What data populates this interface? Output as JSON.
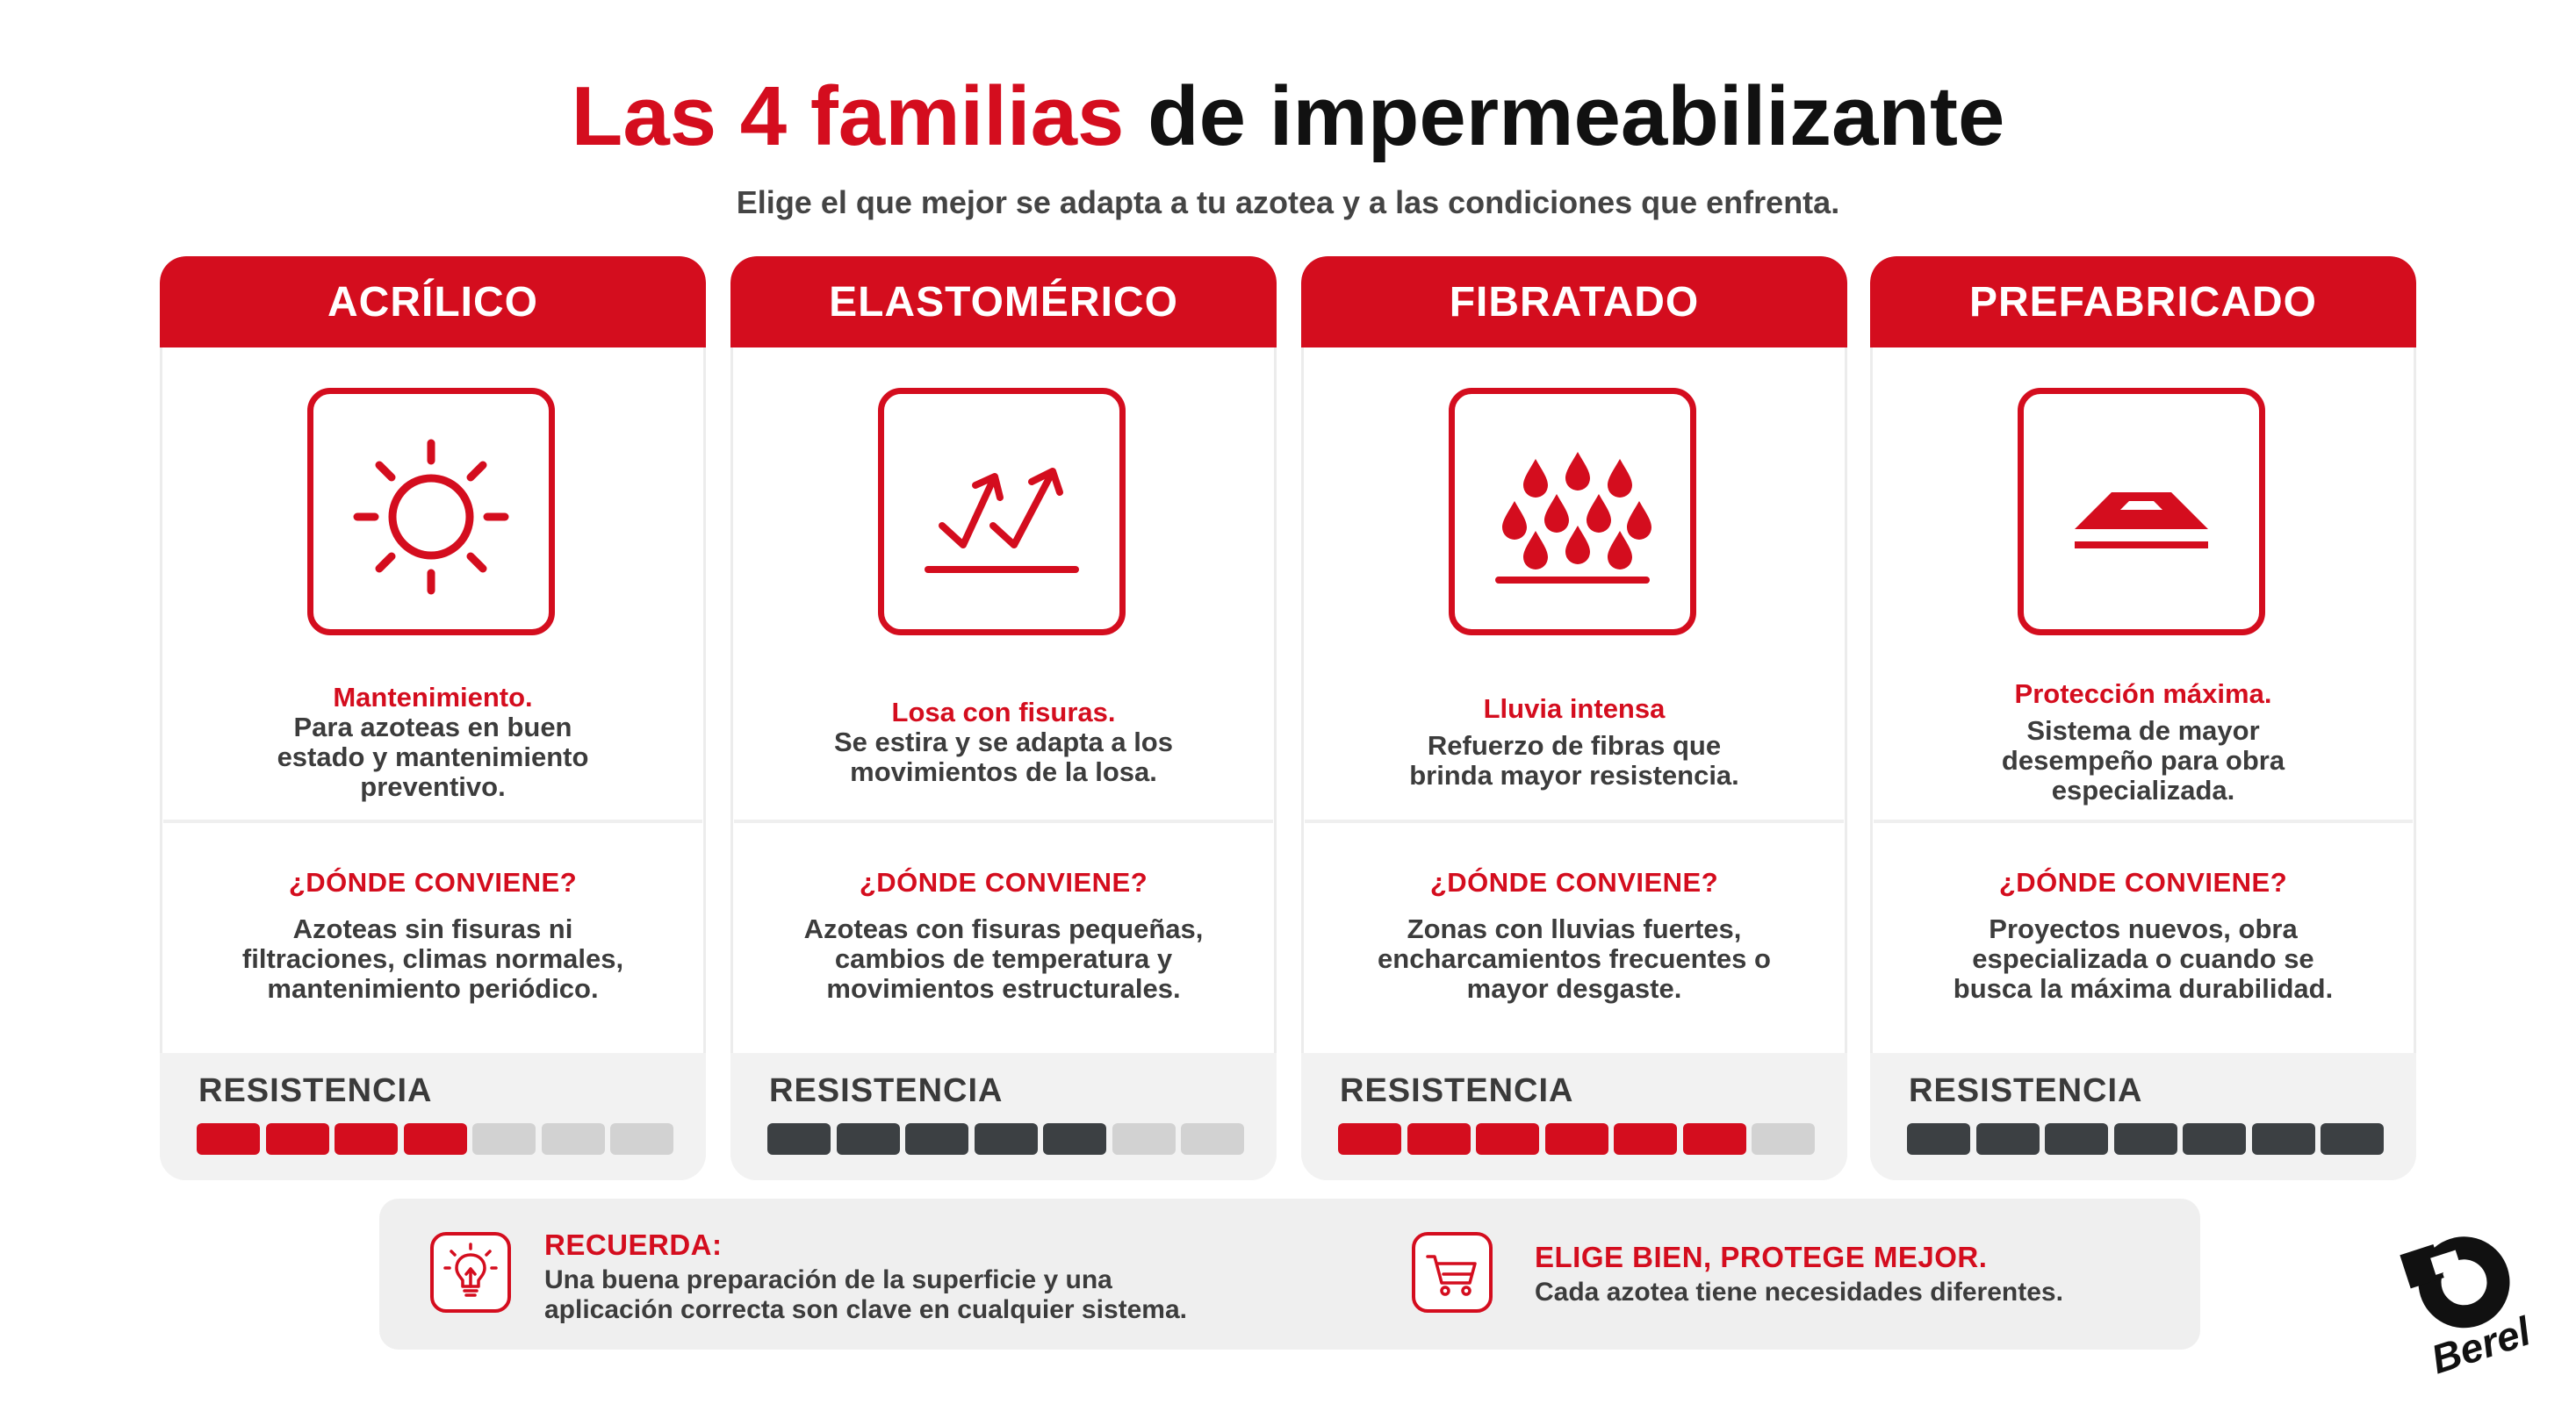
{
  "title": {
    "highlight": "Las 4 familias",
    "rest": " de impermeabilizante"
  },
  "subtitle": "Elige el que mejor se adapta a tu azotea y a las condiciones que enfrenta.",
  "colors": {
    "accent": "#d40d1e",
    "dark": "#3c4043",
    "inactive": "#d2d2d2",
    "panel": "#f2f2f2"
  },
  "cards": [
    {
      "name": "ACRÍLICO",
      "icon": "sun-icon",
      "highlight": "Mantenimiento.",
      "description": [
        "Para azoteas en buen",
        "estado y mantenimiento",
        "preventivo."
      ],
      "where_title": "¿DÓNDE CONVIENE?",
      "where_text": [
        "Azoteas sin fisuras ni",
        "filtraciones, climas normales,",
        "mantenimiento periódico."
      ],
      "resistance_label": "RESISTENCIA",
      "resistance": {
        "level": 4,
        "max": 7,
        "color": "#d40d1e"
      }
    },
    {
      "name": "ELASTOMÉRICO",
      "icon": "stretch-arrows-icon",
      "highlight": "Losa con fisuras.",
      "description": [
        "Se estira y se adapta a los",
        "movimientos de la losa."
      ],
      "where_title": "¿DÓNDE CONVIENE?",
      "where_text": [
        "Azoteas con fisuras pequeñas,",
        "cambios de temperatura y",
        "movimientos estructurales."
      ],
      "resistance_label": "RESISTENCIA",
      "resistance": {
        "level": 5,
        "max": 7,
        "color": "#3c4043"
      }
    },
    {
      "name": "FIBRATADO",
      "icon": "heavy-rain-icon",
      "highlight": "Lluvia intensa",
      "description": [
        "Refuerzo de fibras que",
        "brinda mayor resistencia."
      ],
      "where_title": "¿DÓNDE CONVIENE?",
      "where_text": [
        "Zonas con lluvias fuertes,",
        "encharcamientos frecuentes o",
        "mayor desgaste."
      ],
      "resistance_label": "RESISTENCIA",
      "resistance": {
        "level": 6,
        "max": 7,
        "color": "#d40d1e"
      }
    },
    {
      "name": "PREFABRICADO",
      "icon": "roof-icon",
      "highlight": "Protección máxima.",
      "description": [
        "Sistema de mayor",
        "desempeño para obra",
        "especializada."
      ],
      "where_title": "¿DÓNDE CONVIENE?",
      "where_text": [
        "Proyectos nuevos, obra",
        "especializada o cuando se",
        "busca la máxima durabilidad."
      ],
      "resistance_label": "RESISTENCIA",
      "resistance": {
        "level": 7,
        "max": 7,
        "color": "#3c4043"
      }
    }
  ],
  "footer": {
    "left": {
      "icon": "lightbulb-icon",
      "title": "RECUERDA:",
      "text": [
        "Una buena preparación de la superficie y una",
        "aplicación correcta son clave en cualquier sistema."
      ]
    },
    "right": {
      "icon": "cart-icon",
      "title": "ELIGE BIEN, PROTEGE MEJOR.",
      "text": [
        "Cada azotea tiene necesidades diferentes."
      ]
    }
  },
  "logo": {
    "brand": "Berel",
    "icon": "berel-logo-icon"
  }
}
